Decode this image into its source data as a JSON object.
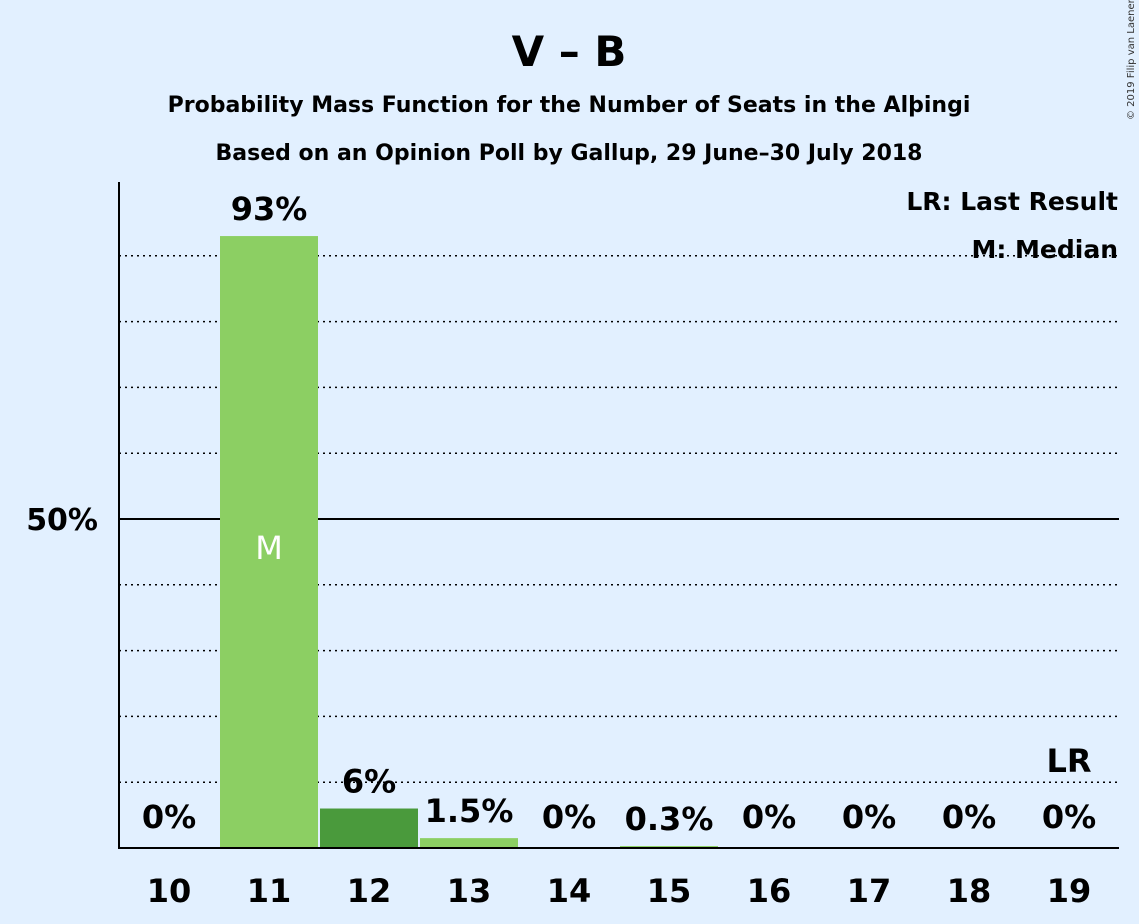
{
  "chart_data": {
    "type": "bar",
    "title": "V – B",
    "subtitle_1": "Probability Mass Function for the Number of Seats in the Alþingi",
    "subtitle_2": "Based on an Opinion Poll by Gallup, 29 June–30 July 2018",
    "copyright": "© 2019 Filip van Laenen",
    "legend": {
      "placement": "top-right",
      "items": [
        "LR: Last Result",
        "M: Median"
      ]
    },
    "categories": [
      "10",
      "11",
      "12",
      "13",
      "14",
      "15",
      "16",
      "17",
      "18",
      "19"
    ],
    "values": [
      0,
      93,
      6,
      1.5,
      0,
      0.3,
      0,
      0,
      0,
      0
    ],
    "data_labels": [
      "0%",
      "93%",
      "6%",
      "1.5%",
      "0%",
      "0.3%",
      "0%",
      "0%",
      "0%",
      "0%"
    ],
    "median_category": "11",
    "median_marker": "M",
    "last_result_category": "19",
    "last_result_marker": "LR",
    "ylim": [
      0,
      100
    ],
    "y_tick_label": "50%",
    "y_tick_value": 50,
    "gridlines": [
      10,
      20,
      30,
      40,
      60,
      70,
      80,
      90
    ],
    "colors": {
      "background": "#e2f0ff",
      "bar": "#8ccf63",
      "bar_highlight": "#4a9a3c",
      "median_marker": "#ffffff",
      "text": "#000000"
    }
  }
}
